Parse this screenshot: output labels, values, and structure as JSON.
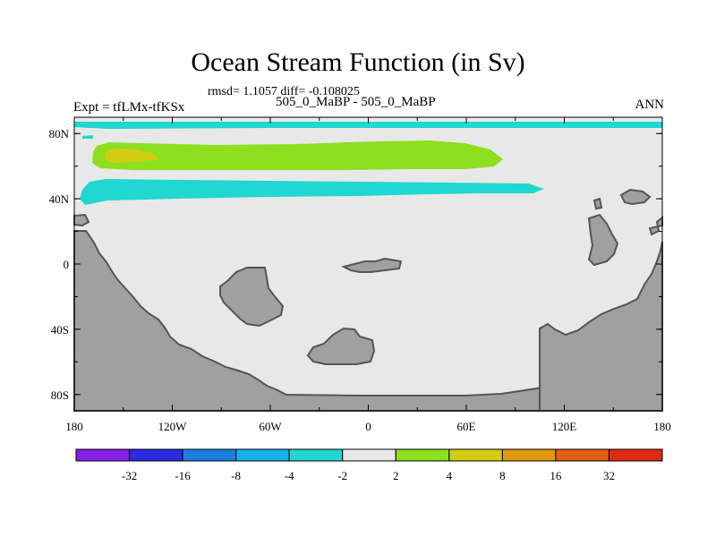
{
  "title": "Ocean Stream Function (in Sv)",
  "stats_line": "rmsd= 1.1057 diff= -0.108025",
  "left_label": "Expt = tfLMx-tfKSx",
  "center_label": "505_0_MaBP - 505_0_MaBP",
  "right_label": "ANN",
  "map": {
    "lon_range": [
      -180,
      180
    ],
    "lat_range": [
      -90,
      90
    ],
    "x_tick_labels": [
      "180",
      "120W",
      "60W",
      "0",
      "60E",
      "120E",
      "180"
    ],
    "y_tick_labels": [
      "80N",
      "40N",
      "0",
      "40S",
      "80S"
    ],
    "land_color": "#a0a0a0",
    "land_outline_color": "#555555",
    "ocean_color": "#e8e8e8"
  },
  "colorbar": {
    "colors": [
      "#8a1ee6",
      "#2a2ae0",
      "#1c7fe0",
      "#19b0e8",
      "#20d8d0",
      "#e8e8e8",
      "#8ce01e",
      "#d2cc12",
      "#e09a12",
      "#e06012",
      "#e02a12"
    ],
    "labels": [
      "-32",
      "-16",
      "-8",
      "-4",
      "-2",
      "2",
      "4",
      "8",
      "16",
      "32"
    ]
  },
  "contour_bands": [
    {
      "name": "arctic-band",
      "level": "-2 to -4",
      "color": "#20d8d0"
    },
    {
      "name": "north-positive-band",
      "level": "2 to 4",
      "color": "#8ce01e"
    },
    {
      "name": "north-positive-core",
      "level": "4 to 8",
      "color": "#d2cc12"
    },
    {
      "name": "midlatitude-negative-band",
      "level": "-2 to -4",
      "color": "#20d8d0"
    }
  ]
}
